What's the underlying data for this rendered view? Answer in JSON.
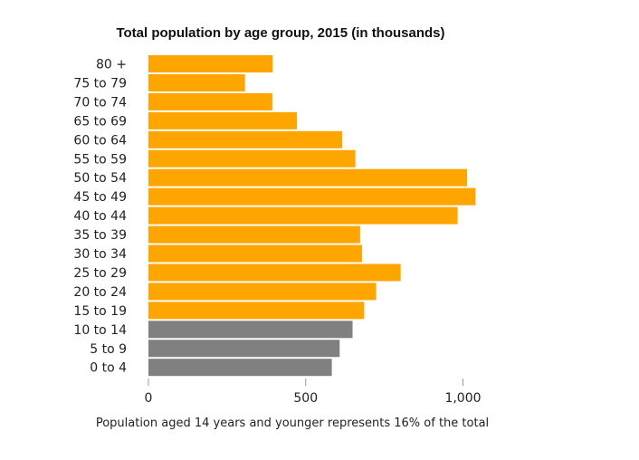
{
  "chart_data": {
    "type": "bar",
    "orientation": "horizontal",
    "title": "Total population by age group, 2015 (in thousands)",
    "note": "Population aged 14 years and younger represents 16% of the total",
    "xlabel": "",
    "ylabel": "",
    "xlim": [
      0,
      1100
    ],
    "xticks": [
      0,
      500,
      1000
    ],
    "xtick_labels": [
      "0",
      "500",
      "1,000"
    ],
    "grid": false,
    "legend": "none",
    "categories": [
      "80 +",
      "75 to 79",
      "70 to 74",
      "65 to 69",
      "60 to 64",
      "55 to 59",
      "50 to 54",
      "45 to 49",
      "40 to 44",
      "35 to 39",
      "30 to 34",
      "25 to 29",
      "20 to 24",
      "15 to 19",
      "10 to 14",
      "5 to 9",
      "0 to 4"
    ],
    "values": [
      395,
      307,
      394,
      472,
      616,
      658,
      1013,
      1040,
      983,
      673,
      679,
      802,
      724,
      686,
      649,
      608,
      583
    ],
    "colors": [
      "#FFA500",
      "#FFA500",
      "#FFA500",
      "#FFA500",
      "#FFA500",
      "#FFA500",
      "#FFA500",
      "#FFA500",
      "#FFA500",
      "#FFA500",
      "#FFA500",
      "#FFA500",
      "#FFA500",
      "#FFA500",
      "#808080",
      "#808080",
      "#808080"
    ]
  }
}
